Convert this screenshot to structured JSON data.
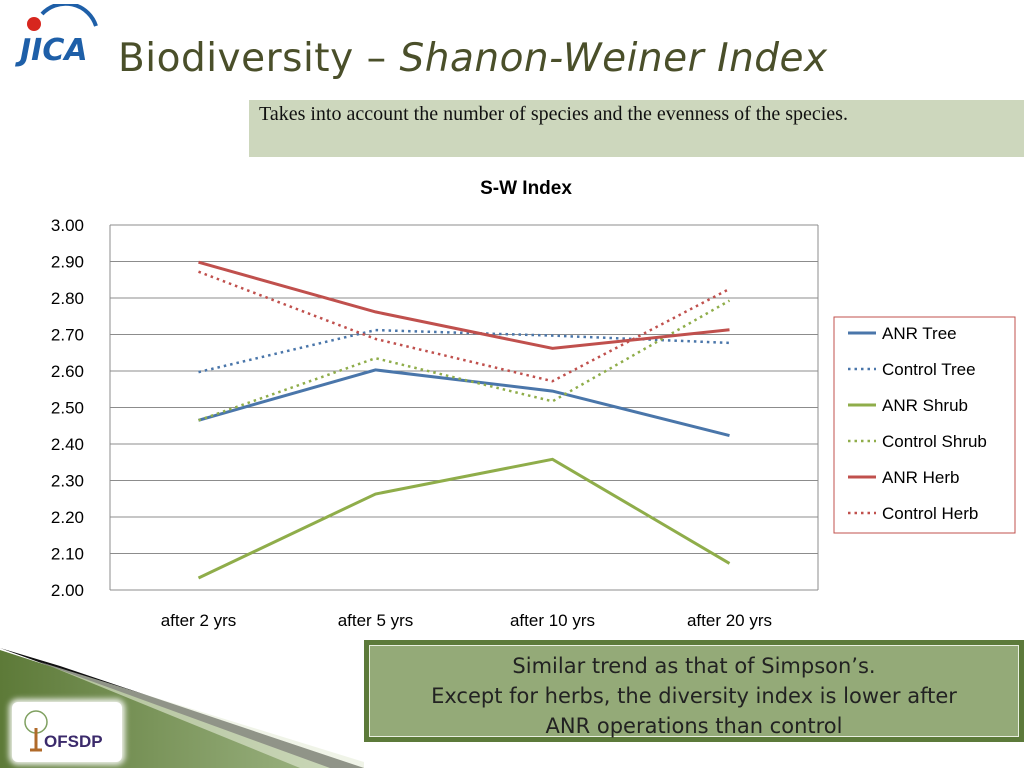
{
  "slide": {
    "title_plain": "Biodiversity – ",
    "title_italic": "Shanon-Weiner Index",
    "logo_text": "JICA",
    "description": "Takes into account the number of species and the evenness of the species.",
    "note_lines": [
      "Similar trend as that of Simpson’s.",
      "Except for herbs, the diversity index is lower after",
      "ANR operations than control"
    ],
    "footer_logo_text": "OFSDP"
  },
  "colors": {
    "title": "#4a4f2a",
    "desc_bg": "#cdd7bd",
    "note_bg": "#94aa78",
    "note_border": "#5c7a3a",
    "tree": "#4a76aa",
    "shrub": "#8fad4a",
    "herb": "#c0504d"
  },
  "chart_data": {
    "type": "line",
    "title": "S-W Index",
    "xlabel": "",
    "ylabel": "",
    "categories": [
      "after 2 yrs",
      "after 5 yrs",
      "after 10 yrs",
      "after 20 yrs"
    ],
    "ylim": [
      2.0,
      3.0
    ],
    "yticks": [
      "2.00",
      "2.10",
      "2.20",
      "2.30",
      "2.40",
      "2.50",
      "2.60",
      "2.70",
      "2.80",
      "2.90",
      "3.00"
    ],
    "grid": true,
    "legend_position": "right",
    "series": [
      {
        "name": "ANR Tree",
        "values": [
          2.465,
          2.603,
          2.545,
          2.423
        ],
        "color": "#4a76aa",
        "style": "solid"
      },
      {
        "name": "Control Tree",
        "values": [
          2.597,
          2.712,
          2.697,
          2.677
        ],
        "color": "#4a76aa",
        "style": "dotted"
      },
      {
        "name": "ANR Shrub",
        "values": [
          2.033,
          2.263,
          2.358,
          2.073
        ],
        "color": "#8fad4a",
        "style": "solid"
      },
      {
        "name": "Control Shrub",
        "values": [
          2.465,
          2.635,
          2.517,
          2.793
        ],
        "color": "#8fad4a",
        "style": "dotted"
      },
      {
        "name": "ANR Herb",
        "values": [
          2.898,
          2.762,
          2.662,
          2.713
        ],
        "color": "#c0504d",
        "style": "solid"
      },
      {
        "name": "Control Herb",
        "values": [
          2.872,
          2.688,
          2.572,
          2.825
        ],
        "color": "#c0504d",
        "style": "dotted"
      }
    ]
  }
}
